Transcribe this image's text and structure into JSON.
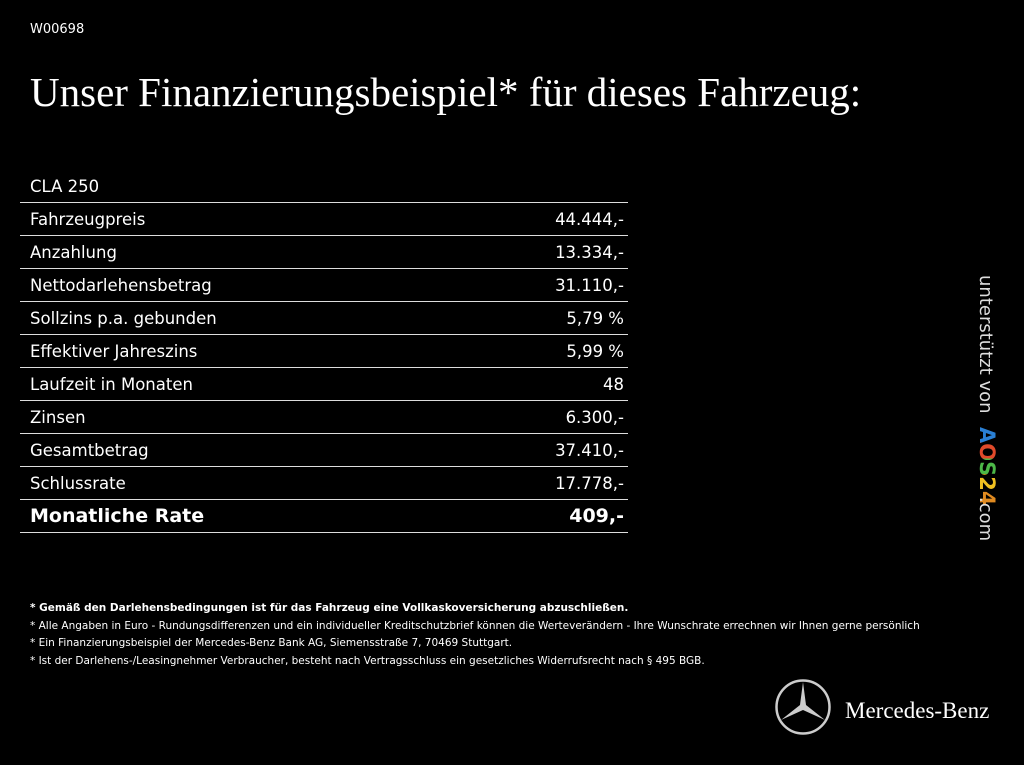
{
  "header": {
    "id": "W00698",
    "title": "Unser Finanzierungsbeispiel* für dieses Fahrzeug:"
  },
  "table": {
    "model": "CLA 250",
    "rows": [
      [
        "Fahrzeugpreis",
        "44.444,-"
      ],
      [
        "Anzahlung",
        "13.334,-"
      ],
      [
        "Nettodarlehensbetrag",
        "31.110,-"
      ],
      [
        "Sollzins p.a. gebunden",
        "5,79 %"
      ],
      [
        "Effektiver Jahreszins",
        "5,99 %"
      ],
      [
        "Laufzeit in Monaten",
        "48"
      ],
      [
        "Zinsen",
        "6.300,-"
      ],
      [
        "Gesamtbetrag",
        "37.410,-"
      ],
      [
        "Schlussrate",
        "17.778,-"
      ]
    ],
    "total": [
      "Monatliche Rate",
      "409,-"
    ]
  },
  "footnotes": [
    "* Gemäß den Darlehensbedingungen ist für das Fahrzeug eine Vollkaskoversicherung abzuschließen.",
    "* Alle Angaben in Euro - Rundungsdifferenzen und ein individueller Kreditschutzbrief können die Werteverändern - Ihre Wunschrate errechnen wir Ihnen gerne persönlich",
    "* Ein Finanzierungsbeispiel der Mercedes-Benz Bank AG, Siemensstraße 7, 70469 Stuttgart.",
    "* Ist der Darlehens-/Leasingnehmer Verbraucher, besteht nach Vertragsschluss ein gesetzliches Widerrufsrecht nach § 495 BGB."
  ],
  "sidebar": {
    "prefix": "unterstützt von",
    "brand": "AOS24",
    "suffix": ".com"
  },
  "logo": {
    "name": "Mercedes-Benz"
  }
}
